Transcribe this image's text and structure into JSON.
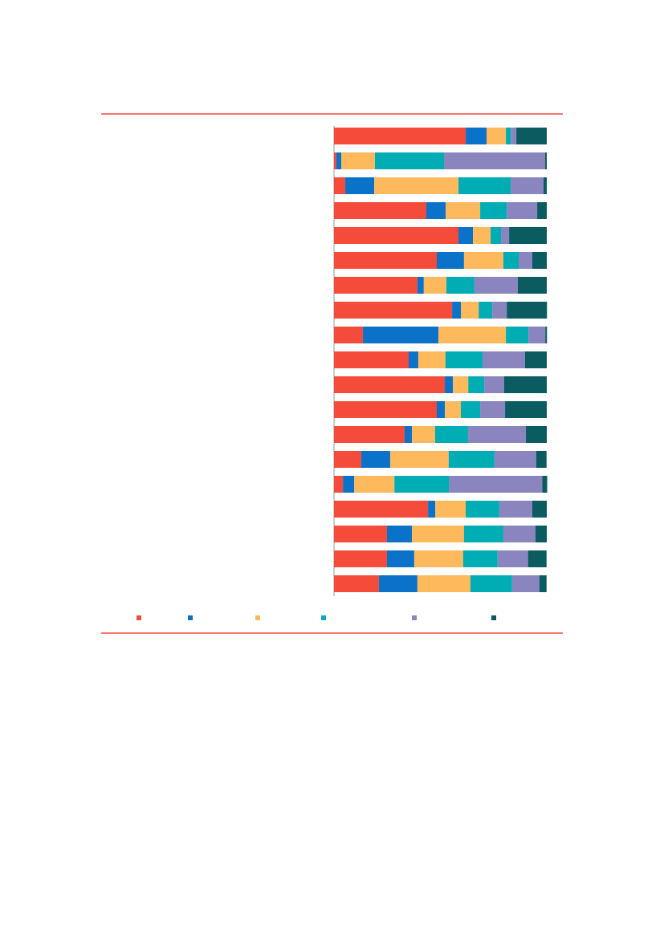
{
  "chart_data": {
    "type": "stacked-bar-horizontal",
    "categories": [
      null,
      null,
      null,
      null,
      null,
      null,
      null,
      null,
      null,
      null,
      null,
      null,
      null,
      null,
      null,
      null,
      null,
      null,
      null
    ],
    "xlim": [
      0,
      100
    ],
    "series": [
      {
        "color": "#f44b3a",
        "values": [
          61.9,
          1.1,
          5.3,
          43.4,
          58.5,
          48.3,
          39.2,
          55.5,
          13.6,
          35.1,
          52.1,
          48.3,
          33.2,
          12.8,
          4.2,
          44.2,
          24.9,
          24.9,
          21.1
        ]
      },
      {
        "color": "#0a72c8",
        "values": [
          9.8,
          2.3,
          13.6,
          9.1,
          6.8,
          12.8,
          3.0,
          4.2,
          35.5,
          4.5,
          3.8,
          3.8,
          3.4,
          13.6,
          5.3,
          3.4,
          11.7,
          12.8,
          18.1
        ]
      },
      {
        "color": "#fdb95c",
        "values": [
          9.1,
          15.8,
          39.6,
          16.2,
          8.3,
          18.5,
          10.6,
          8.3,
          31.7,
          12.8,
          7.2,
          7.5,
          10.9,
          27.5,
          18.9,
          14.3,
          24.5,
          23.0,
          24.9
        ]
      },
      {
        "color": "#00adb5",
        "values": [
          2.3,
          32.5,
          24.5,
          12.5,
          4.9,
          7.2,
          13.2,
          6.4,
          10.6,
          17.4,
          7.5,
          9.1,
          15.5,
          21.5,
          25.7,
          15.8,
          18.5,
          16.2,
          19.6
        ]
      },
      {
        "color": "#8a84bf",
        "values": [
          2.6,
          47.5,
          15.5,
          14.3,
          3.8,
          6.4,
          20.4,
          6.8,
          7.9,
          20.0,
          9.4,
          11.7,
          27.2,
          19.6,
          43.8,
          15.5,
          15.1,
          14.3,
          12.8
        ]
      },
      {
        "color": "#0a5c61",
        "values": [
          14.3,
          0.8,
          1.5,
          4.5,
          17.7,
          6.8,
          13.6,
          18.9,
          0.8,
          10.2,
          20.0,
          19.6,
          9.8,
          4.9,
          2.3,
          6.8,
          5.3,
          8.7,
          3.4
        ]
      }
    ]
  }
}
